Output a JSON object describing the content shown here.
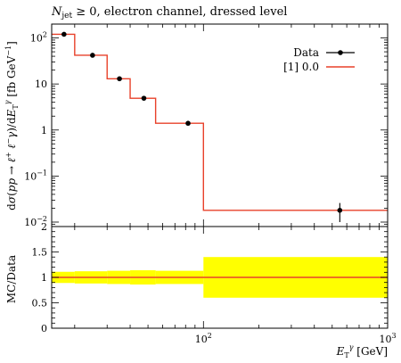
{
  "chart_data": [
    {
      "panel": "main",
      "type": "line",
      "title": "N_jet ≥ 0, electron channel, dressed level",
      "xlabel": "E_T^γ [GeV]",
      "ylabel": "dσ(pp → ℓ⁺ℓ⁻γ)/dE_T^γ [fb GeV⁻¹]",
      "xscale": "log",
      "yscale": "log",
      "xlim": [
        15,
        1000
      ],
      "ylim": [
        0.008,
        200
      ],
      "y_tick_labels": [
        "10^2",
        "10",
        "1",
        "10^-1",
        "10^-2"
      ],
      "x_tick_labels": [
        "10^2",
        "10^3"
      ],
      "legend_placement": "top-right",
      "series": [
        {
          "name": "Data",
          "style": "points",
          "x": [
            17.5,
            25,
            35,
            47.5,
            82.5,
            550
          ],
          "y": [
            120,
            42,
            13,
            4.9,
            1.4,
            0.018
          ],
          "yerr_low": [
            0,
            0,
            0,
            0,
            0,
            0.008
          ],
          "yerr_high": [
            0,
            0,
            0,
            0,
            0,
            0.008
          ]
        },
        {
          "name": "[1] 0.0",
          "style": "histogram",
          "bin_edges": [
            15,
            20,
            30,
            40,
            55,
            100,
            1000
          ],
          "values": [
            120,
            42,
            13,
            4.9,
            1.4,
            0.018
          ]
        }
      ]
    },
    {
      "panel": "ratio",
      "type": "area",
      "ylabel": "MC/Data",
      "xscale": "log",
      "xlim": [
        15,
        1000
      ],
      "ylim": [
        0,
        2
      ],
      "y_tick_labels": [
        "0",
        "0.5",
        "1",
        "1.5",
        "2"
      ],
      "x_tick_labels": [
        "10^2",
        "10^3"
      ],
      "band": {
        "bin_edges": [
          15,
          20,
          30,
          40,
          55,
          100,
          1000
        ],
        "low": [
          0.89,
          0.88,
          0.87,
          0.86,
          0.87,
          0.6
        ],
        "high": [
          1.11,
          1.12,
          1.13,
          1.14,
          1.13,
          1.4
        ]
      },
      "ratio_line": {
        "bin_edges": [
          15,
          20,
          30,
          40,
          55,
          100,
          1000
        ],
        "values": [
          1,
          1,
          1,
          1,
          1,
          1
        ]
      }
    }
  ],
  "colors": {
    "mc": "#e8412a",
    "band": "#ffff00",
    "data": "#000000"
  }
}
